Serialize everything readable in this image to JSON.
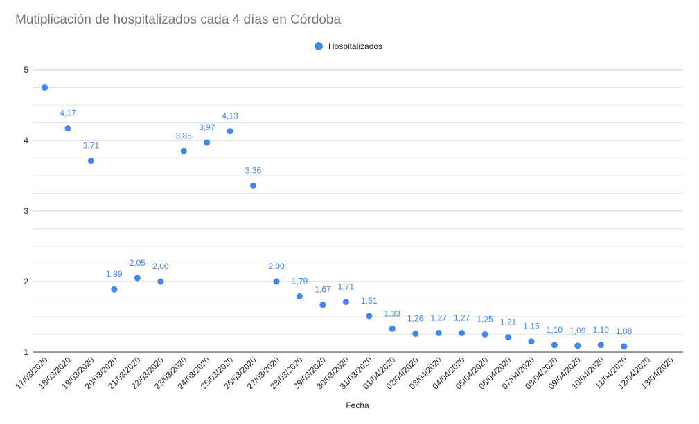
{
  "chart_data": {
    "type": "scatter",
    "title": "Mutiplicación de hospitalizados cada 4 días en Córdoba",
    "xlabel": "Fecha",
    "ylabel": "",
    "ylim": [
      1,
      5
    ],
    "yticks": [
      "1",
      "2",
      "3",
      "4",
      "5"
    ],
    "grid": true,
    "legend_position": "top",
    "color": "#4285f4",
    "categories": [
      "17/03/2020",
      "18/03/2020",
      "19/03/2020",
      "20/03/2020",
      "21/03/2020",
      "22/03/2020",
      "23/03/2020",
      "24/03/2020",
      "25/03/2020",
      "26/03/2020",
      "27/03/2020",
      "28/03/2020",
      "29/03/2020",
      "30/03/2020",
      "31/03/2020",
      "01/04/2020",
      "02/04/2020",
      "03/04/2020",
      "04/04/2020",
      "05/04/2020",
      "06/04/2020",
      "07/04/2020",
      "08/04/2020",
      "09/04/2020",
      "10/04/2020",
      "11/04/2020",
      "12/04/2020",
      "13/04/2020"
    ],
    "series": [
      {
        "name": "Hospitalizados",
        "values": [
          4.75,
          4.17,
          3.71,
          1.89,
          2.05,
          2.0,
          3.85,
          3.97,
          4.13,
          3.36,
          2.0,
          1.79,
          1.67,
          1.71,
          1.51,
          1.33,
          1.26,
          1.27,
          1.27,
          1.25,
          1.21,
          1.15,
          1.1,
          1.09,
          1.1,
          1.08,
          null,
          null
        ],
        "labels": [
          "",
          "4,17",
          "3,71",
          "1,89",
          "2,05",
          "2,00",
          "3,85",
          "3,97",
          "4,13",
          "3,36",
          "2,00",
          "1,79",
          "1,67",
          "1,71",
          "1,51",
          "1,33",
          "1,26",
          "1,27",
          "1,27",
          "1,25",
          "1,21",
          "1,15",
          "1,10",
          "1,09",
          "1,10",
          "1,08",
          "",
          ""
        ]
      }
    ]
  }
}
